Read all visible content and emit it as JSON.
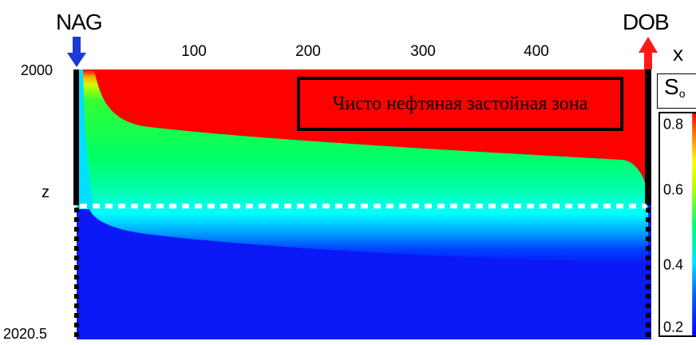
{
  "wells": {
    "injector": {
      "name": "NAG",
      "color": "#1a3ad6"
    },
    "producer": {
      "name": "DOB",
      "color": "#ff1a1a"
    }
  },
  "axes": {
    "x_label": "x",
    "x_ticks": [
      "100",
      "200",
      "300",
      "400"
    ],
    "z_label": "z",
    "z_top": "2000",
    "z_bottom": "2020.5"
  },
  "annotation": {
    "text": "Чисто нефтяная застойная зона"
  },
  "colorbar": {
    "title_main": "S",
    "title_sub": "o",
    "ticks": [
      "0.8",
      "0.6",
      "0.4",
      "0.2"
    ],
    "min": 0.2,
    "max": 0.8,
    "colors": [
      "#0000ff",
      "#00e6ff",
      "#00ff80",
      "#a6ff00",
      "#ffff00",
      "#ff8000",
      "#ff0000"
    ]
  },
  "field_colors": {
    "oil": "#ff0000",
    "water": "#0a19f5"
  }
}
